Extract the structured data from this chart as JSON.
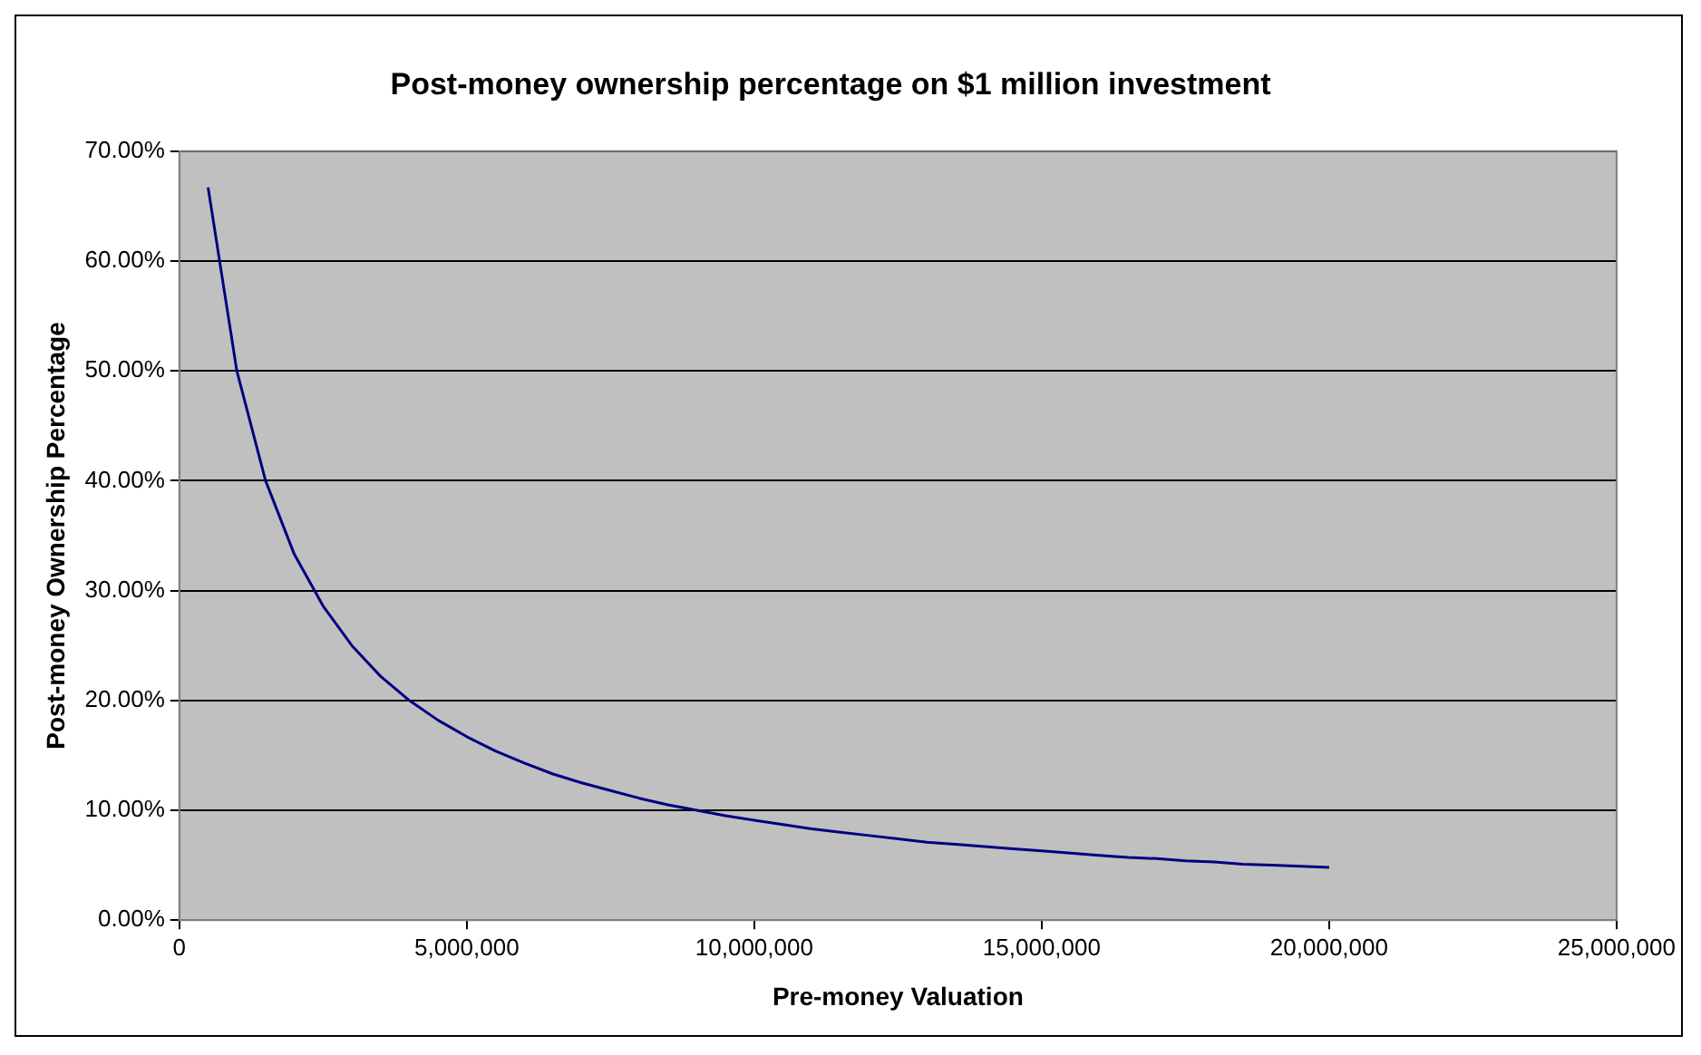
{
  "chart_data": {
    "type": "line",
    "title": "Post-money ownership percentage on $1 million investment",
    "xlabel": "Pre-money Valuation",
    "ylabel": "Post-money Ownership Percentage",
    "x": [
      500000,
      1000000,
      1500000,
      2000000,
      2500000,
      3000000,
      3500000,
      4000000,
      4500000,
      5000000,
      5500000,
      6000000,
      6500000,
      7000000,
      7500000,
      8000000,
      8500000,
      9000000,
      9500000,
      10000000,
      10500000,
      11000000,
      11500000,
      12000000,
      12500000,
      13000000,
      13500000,
      14000000,
      14500000,
      15000000,
      15500000,
      16000000,
      16500000,
      17000000,
      17500000,
      18000000,
      18500000,
      19000000,
      19500000,
      20000000
    ],
    "series": [
      {
        "color": "#000080",
        "values": [
          66.7,
          50.0,
          40.0,
          33.3,
          28.6,
          25.0,
          22.2,
          20.0,
          18.2,
          16.7,
          15.4,
          14.3,
          13.3,
          12.5,
          11.8,
          11.1,
          10.5,
          10.0,
          9.5,
          9.1,
          8.7,
          8.3,
          8.0,
          7.7,
          7.4,
          7.1,
          6.9,
          6.7,
          6.5,
          6.3,
          6.1,
          5.9,
          5.7,
          5.6,
          5.4,
          5.3,
          5.1,
          5.0,
          4.9,
          4.8
        ]
      }
    ],
    "xlim": [
      0,
      25000000
    ],
    "xticks": [
      0,
      {
        "value": 5000000,
        "label": "5,000,000"
      },
      {
        "value": 10000000,
        "label": "10,000,000"
      },
      {
        "value": 15000000,
        "label": "15,000,000"
      },
      {
        "value": 20000000,
        "label": "20,000,000"
      },
      {
        "value": 25000000,
        "label": "25,000,000"
      }
    ],
    "ylim": [
      0,
      70
    ],
    "yticks": [
      {
        "value": 0,
        "label": "0.00%"
      },
      {
        "value": 10,
        "label": "10.00%"
      },
      {
        "value": 20,
        "label": "20.00%"
      },
      {
        "value": 30,
        "label": "30.00%"
      },
      {
        "value": 40,
        "label": "40.00%"
      },
      {
        "value": 50,
        "label": "50.00%"
      },
      {
        "value": 60,
        "label": "60.00%"
      },
      {
        "value": 70,
        "label": "70.00%"
      }
    ],
    "grid": "y",
    "legend": false,
    "marker": "none",
    "line_style": "solid"
  }
}
